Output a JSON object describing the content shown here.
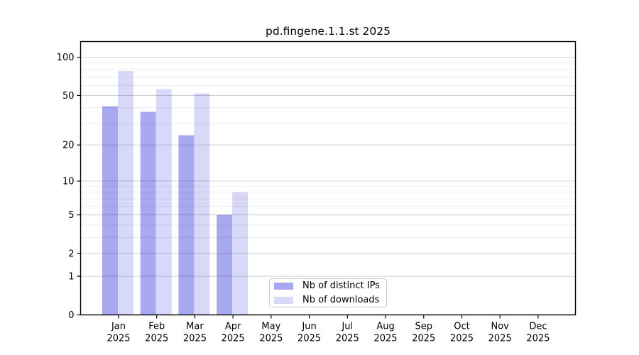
{
  "title": "pd.fingene.1.1.st 2025",
  "chart_data": {
    "type": "bar",
    "title": "pd.fingene.1.1.st 2025",
    "categories": [
      "Jan",
      "Feb",
      "Mar",
      "Apr",
      "May",
      "Jun",
      "Jul",
      "Aug",
      "Sep",
      "Oct",
      "Nov",
      "Dec"
    ],
    "year_label": "2025",
    "series": [
      {
        "name": "Nb of distinct IPs",
        "color": "#a8a8f0",
        "values": [
          41,
          37,
          24,
          5,
          0,
          0,
          0,
          0,
          0,
          0,
          0,
          0
        ]
      },
      {
        "name": "Nb of downloads",
        "color": "#d8d8f8",
        "values": [
          78,
          56,
          52,
          8,
          0,
          0,
          0,
          0,
          0,
          0,
          0,
          0
        ]
      }
    ],
    "y_ticks": [
      0,
      1,
      2,
      5,
      10,
      20,
      50,
      100
    ],
    "y_minor_ticks": [
      3,
      4,
      6,
      7,
      8,
      9,
      30,
      40,
      60,
      70,
      80,
      90
    ],
    "y_scale": "log10(1+x)",
    "ylim": [
      0,
      133
    ],
    "grid": true,
    "legend_position": "bottom-center",
    "colors": {
      "spine": "#000000",
      "background": "#ffffff",
      "major_grid": "#d4d4d4",
      "minor_grid": "#ececec"
    }
  }
}
